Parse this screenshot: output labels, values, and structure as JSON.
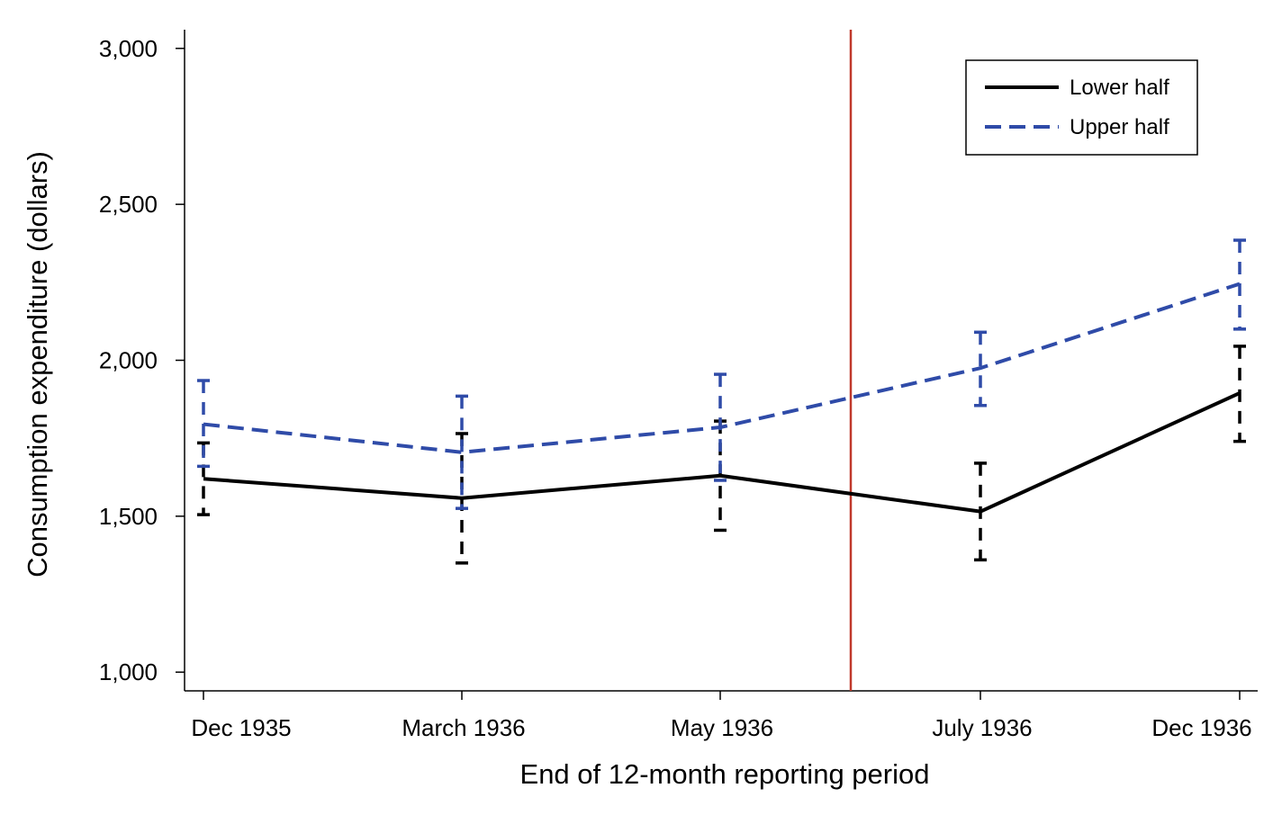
{
  "chart_data": {
    "type": "line",
    "xlabel": "End of 12-month reporting period",
    "ylabel": "Consumption expenditure (dollars)",
    "ylim": [
      940,
      3060
    ],
    "yticks": [
      1000,
      1500,
      2000,
      2500,
      3000
    ],
    "ytick_labels": [
      "1,000",
      "1,500",
      "2,000",
      "2,500",
      "3,000"
    ],
    "categories": [
      "Dec 1935",
      "March 1936",
      "May 1936",
      "July 1936",
      "Dec 1936"
    ],
    "reference_line": {
      "between": [
        "May 1936",
        "July 1936"
      ],
      "color": "#c0392b"
    },
    "legend": {
      "placement": "top-right"
    },
    "grid": false,
    "series": [
      {
        "name": "Lower half",
        "color": "#000000",
        "style": "solid",
        "values": [
          1620,
          1558,
          1630,
          1515,
          1895
        ],
        "ci_low": [
          1505,
          1350,
          1455,
          1360,
          1740
        ],
        "ci_high": [
          1735,
          1765,
          1805,
          1670,
          2045
        ]
      },
      {
        "name": "Upper half",
        "color": "#2f4ba8",
        "style": "dashed",
        "values": [
          1795,
          1705,
          1785,
          1975,
          2245
        ],
        "ci_low": [
          1660,
          1525,
          1615,
          1855,
          2100
        ],
        "ci_high": [
          1935,
          1885,
          1955,
          2090,
          2385
        ]
      }
    ]
  }
}
